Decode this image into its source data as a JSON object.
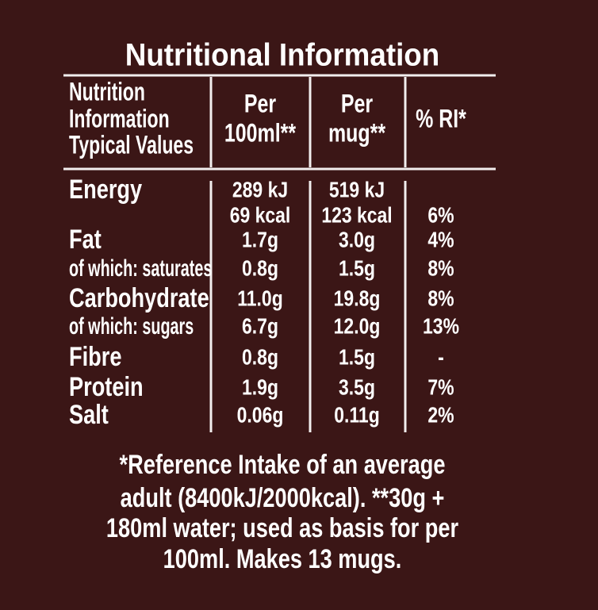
{
  "title": "Nutritional Information",
  "table": {
    "header": [
      [
        "Nutrition",
        "Information",
        "Typical Values"
      ],
      [
        "Per",
        "100ml**"
      ],
      [
        "Per",
        "mug**"
      ],
      [
        "% RI*"
      ]
    ],
    "rows": [
      [
        "Energy",
        [
          "289 kJ",
          "69 kcal"
        ],
        [
          "519 kJ",
          "123 kcal"
        ],
        "6%"
      ],
      [
        "Fat",
        "1.7g",
        "3.0g",
        "4%"
      ],
      [
        "of which: saturates",
        "0.8g",
        "1.5g",
        "8%"
      ],
      [
        "Carbohydrate",
        "11.0g",
        "19.8g",
        "8%"
      ],
      [
        "of which: sugars",
        "6.7g",
        "12.0g",
        "13%"
      ],
      [
        "Fibre",
        "0.8g",
        "1.5g",
        "-"
      ],
      [
        "Protein",
        "1.9g",
        "3.5g",
        "7%"
      ],
      [
        "Salt",
        "0.06g",
        "0.11g",
        "2%"
      ]
    ]
  },
  "footnote": [
    "*Reference Intake of an average",
    "adult (8400kJ/2000kcal). **30g +",
    "180ml water; used as basis for per",
    "100ml. Makes 13 mugs."
  ]
}
